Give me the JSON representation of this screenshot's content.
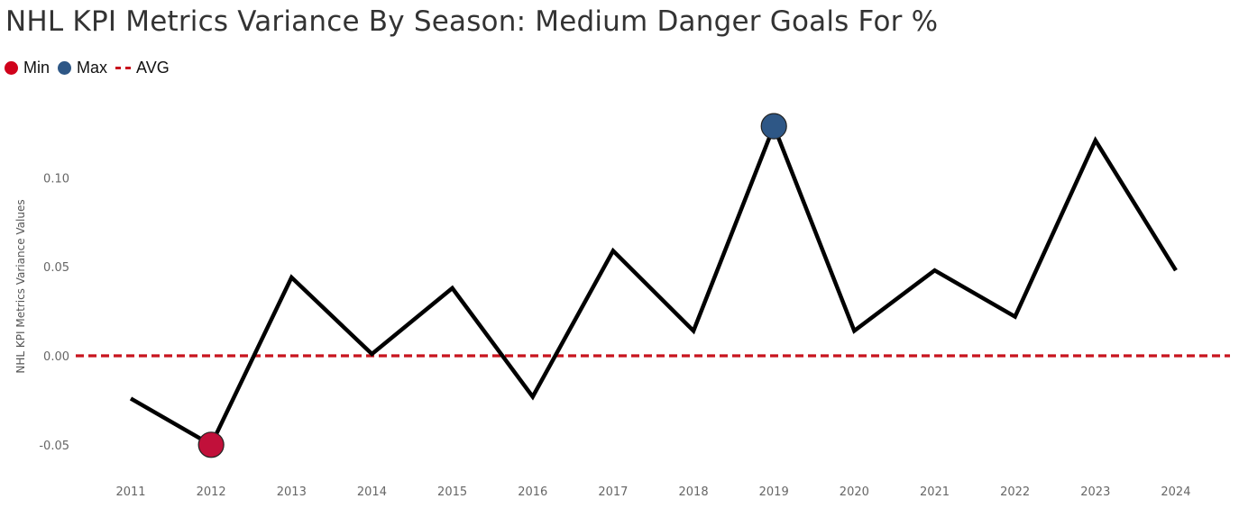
{
  "title": "NHL KPI Metrics Variance By Season: Medium Danger Goals For %",
  "legend": [
    {
      "label": "Min",
      "color": "#d0021b",
      "marker": "dot"
    },
    {
      "label": "Max",
      "color": "#2e5786",
      "marker": "dot"
    },
    {
      "label": "AVG",
      "color": "#c8141e",
      "marker": "dashed-line"
    }
  ],
  "chart_data": {
    "type": "line",
    "title": "NHL KPI Metrics Variance By Season: Medium Danger Goals For %",
    "xlabel": "",
    "ylabel": "NHL KPI Metrics Variance Values",
    "x": [
      "2011",
      "2012",
      "2013",
      "2014",
      "2015",
      "2016",
      "2017",
      "2018",
      "2019",
      "2020",
      "2021",
      "2022",
      "2023",
      "2024"
    ],
    "values": [
      -0.024,
      -0.05,
      0.044,
      0.001,
      0.038,
      -0.023,
      0.059,
      0.014,
      0.129,
      0.014,
      0.048,
      0.022,
      0.121,
      0.048
    ],
    "ylim": [
      -0.06,
      0.145
    ],
    "yticks": [
      {
        "value": 0.1,
        "label": "0.10"
      },
      {
        "value": 0.05,
        "label": "0.05"
      },
      {
        "value": 0.0,
        "label": "0.00"
      },
      {
        "value": -0.05,
        "label": "-0.05"
      }
    ],
    "avg_line": 0.0,
    "min_point": {
      "x": "2012",
      "value": -0.05,
      "color": "#c1103a"
    },
    "max_point": {
      "x": "2019",
      "value": 0.129,
      "color": "#2e5786"
    },
    "line_color": "#000000",
    "avg_color": "#c8141e",
    "grid": false,
    "legend_position": "top-left"
  }
}
